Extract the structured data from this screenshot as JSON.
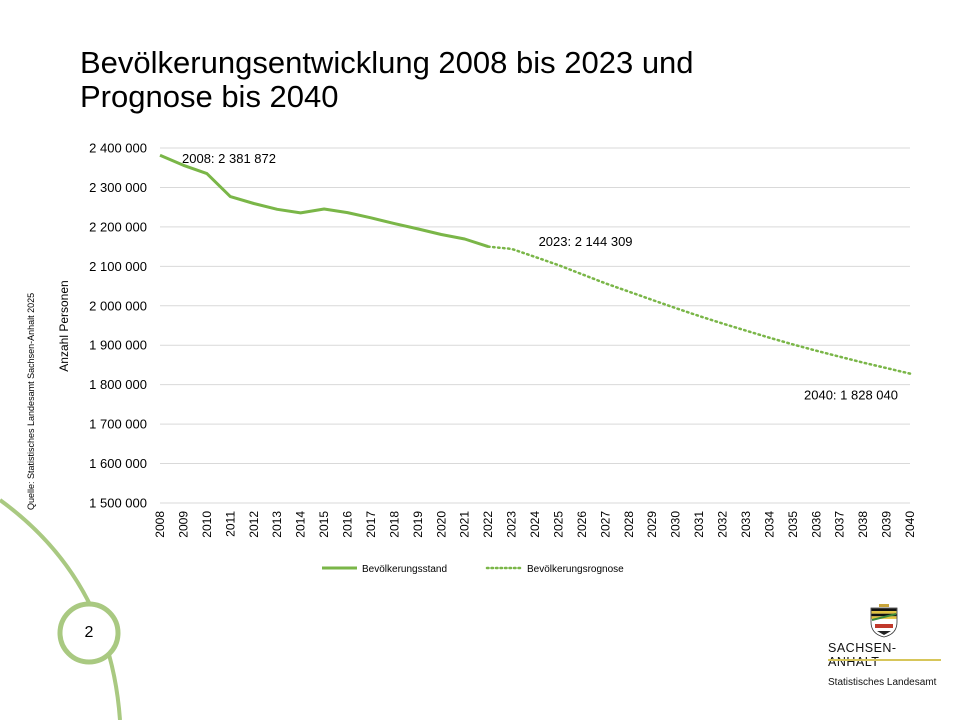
{
  "slide": {
    "title": "Bevölkerungsentwicklung 2008 bis 2023 und Prognose bis 2040",
    "source": "Quelle: Statistisches Landesamt Sachsen-Anhalt 2025",
    "page_number": "2"
  },
  "logo": {
    "name": "SACHSEN-ANHALT",
    "subtitle": "Statistisches Landesamt",
    "icon": "coat-of-arms-icon"
  },
  "colors": {
    "series": "#7ab648",
    "grid": "#d9d9d9",
    "decor": "#a9c981"
  },
  "chart_data": {
    "type": "line",
    "title": "",
    "xlabel": "",
    "ylabel": "Anzahl Personen",
    "ylim": [
      1500000,
      2400000
    ],
    "yticks": [
      1500000,
      1600000,
      1700000,
      1800000,
      1900000,
      2000000,
      2100000,
      2200000,
      2300000,
      2400000
    ],
    "ytick_labels": [
      "1 500 000",
      "1 600 000",
      "1 700 000",
      "1 800 000",
      "1 900 000",
      "2 000 000",
      "2 100 000",
      "2 200 000",
      "2 300 000",
      "2 400 000"
    ],
    "grid": true,
    "legend": "bottom",
    "x": [
      2008,
      2009,
      2010,
      2011,
      2012,
      2013,
      2014,
      2015,
      2016,
      2017,
      2018,
      2019,
      2020,
      2021,
      2022,
      2023,
      2024,
      2025,
      2026,
      2027,
      2028,
      2029,
      2030,
      2031,
      2032,
      2033,
      2034,
      2035,
      2036,
      2037,
      2038,
      2039,
      2040
    ],
    "series": [
      {
        "name": "Bevölkerungsstand",
        "style": "solid",
        "x": [
          2008,
          2009,
          2010,
          2011,
          2012,
          2013,
          2014,
          2015,
          2016,
          2017,
          2018,
          2019,
          2020,
          2021,
          2022
        ],
        "values": [
          2381872,
          2356219,
          2335006,
          2276736,
          2259393,
          2244577,
          2235548,
          2245470,
          2236252,
          2223081,
          2208321,
          2194782,
          2180684,
          2169253,
          2150000
        ]
      },
      {
        "name": "Bevölkerungsrognose",
        "style": "dotted",
        "x": [
          2022,
          2023,
          2024,
          2025,
          2026,
          2027,
          2028,
          2029,
          2030,
          2031,
          2032,
          2033,
          2034,
          2035,
          2036,
          2037,
          2038,
          2039,
          2040
        ],
        "values": [
          2150000,
          2144309,
          2124000,
          2103000,
          2080000,
          2057000,
          2036000,
          2015000,
          1994000,
          1974000,
          1955000,
          1937000,
          1919000,
          1902000,
          1886000,
          1871000,
          1856000,
          1842000,
          1828040
        ]
      }
    ],
    "annotations": [
      {
        "x": 2008,
        "y": 2381872,
        "text": "2008: 2 381 872"
      },
      {
        "x": 2023,
        "y": 2144309,
        "text": "2023: 2 144 309"
      },
      {
        "x": 2040,
        "y": 1828040,
        "text": "2040: 1 828 040"
      }
    ]
  }
}
